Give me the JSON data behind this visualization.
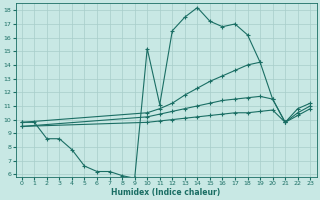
{
  "xlabel": "Humidex (Indice chaleur)",
  "xlim": [
    -0.5,
    23.5
  ],
  "ylim": [
    5.8,
    18.5
  ],
  "xticks": [
    0,
    1,
    2,
    3,
    4,
    5,
    6,
    7,
    8,
    9,
    10,
    11,
    12,
    13,
    14,
    15,
    16,
    17,
    18,
    19,
    20,
    21,
    22,
    23
  ],
  "yticks": [
    6,
    7,
    8,
    9,
    10,
    11,
    12,
    13,
    14,
    15,
    16,
    17,
    18
  ],
  "bg_color": "#c8e8e4",
  "line_color": "#1a6e64",
  "grid_color": "#a8ceca",
  "curves": [
    {
      "x": [
        0,
        1,
        2,
        3,
        4,
        5,
        6,
        7,
        8,
        9,
        10,
        11,
        12,
        13,
        14,
        15,
        16,
        17,
        18,
        19
      ],
      "y": [
        9.8,
        9.8,
        8.6,
        8.6,
        7.8,
        6.6,
        6.2,
        6.2,
        5.9,
        5.7,
        15.2,
        11.1,
        16.5,
        17.5,
        18.2,
        17.2,
        16.8,
        17.0,
        16.2,
        14.2
      ]
    },
    {
      "x": [
        0,
        10,
        11,
        12,
        13,
        14,
        15,
        16,
        17,
        18,
        19,
        20,
        21,
        22,
        23
      ],
      "y": [
        9.8,
        10.5,
        10.8,
        11.2,
        11.8,
        12.3,
        12.8,
        13.2,
        13.6,
        14.0,
        14.2,
        11.5,
        9.8,
        10.8,
        11.2
      ]
    },
    {
      "x": [
        0,
        10,
        11,
        12,
        13,
        14,
        15,
        16,
        17,
        18,
        19,
        20,
        21,
        22,
        23
      ],
      "y": [
        9.5,
        10.2,
        10.4,
        10.6,
        10.8,
        11.0,
        11.2,
        11.4,
        11.5,
        11.6,
        11.7,
        11.5,
        9.8,
        10.5,
        11.0
      ]
    },
    {
      "x": [
        0,
        10,
        11,
        12,
        13,
        14,
        15,
        16,
        17,
        18,
        19,
        20,
        21,
        22,
        23
      ],
      "y": [
        9.5,
        9.8,
        9.9,
        10.0,
        10.1,
        10.2,
        10.3,
        10.4,
        10.5,
        10.5,
        10.6,
        10.7,
        9.8,
        10.3,
        10.8
      ]
    }
  ]
}
